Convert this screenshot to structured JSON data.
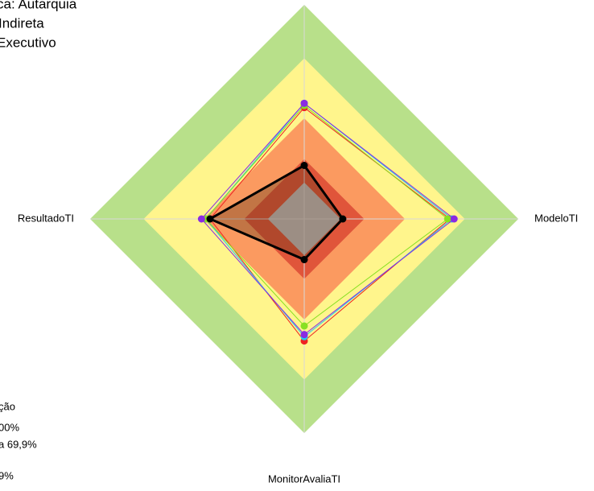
{
  "chart_data": {
    "type": "radar",
    "annotations": [
      "ca: Autarquia",
      "Indireta",
      "Executivo",
      "ção",
      "00%",
      "a 69,9%",
      "9%"
    ],
    "categories": [
      null,
      "ModeloTI",
      "MonitorAvaliaTI",
      "ResultadoTI"
    ],
    "ylim": [
      0,
      100
    ],
    "bands": [
      {
        "value": 100,
        "color": "#b8e08a"
      },
      {
        "value": 75,
        "color": "#fff58c"
      },
      {
        "value": 47,
        "color": "#fb9a60"
      },
      {
        "value": 28,
        "color": "#e0553a"
      },
      {
        "value": 17,
        "color": "#c0c0c0"
      }
    ],
    "series": [
      {
        "color": "#ee2222",
        "values": [
          52,
          68,
          57,
          44
        ]
      },
      {
        "color": "#22ccee",
        "values": [
          54,
          69,
          55,
          46
        ]
      },
      {
        "color": "#88e022",
        "values": [
          53,
          67,
          50,
          46
        ]
      },
      {
        "color": "#8a2be2",
        "values": [
          54,
          70,
          54,
          48
        ]
      },
      {
        "color": "#000000",
        "values": [
          25,
          18,
          19,
          44
        ],
        "fill": true
      }
    ]
  }
}
